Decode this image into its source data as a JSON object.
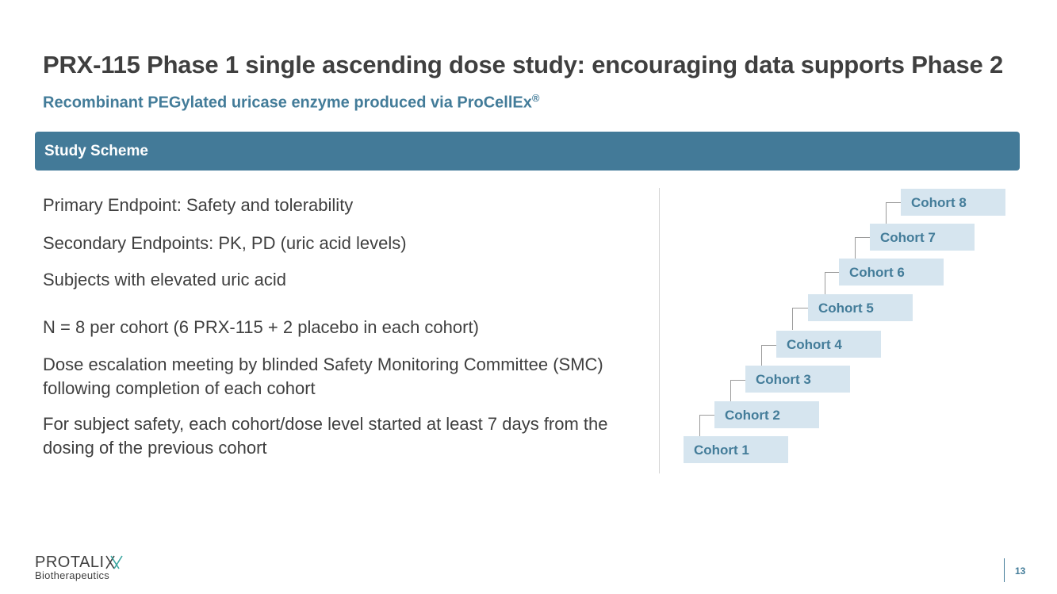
{
  "slide": {
    "title": "PRX-115 Phase 1 single ascending dose study: encouraging data supports Phase 2",
    "subtitle_text": "Recombinant PEGylated uricase enzyme produced via ProCellEx",
    "subtitle_mark": "®",
    "banner_label": "Study Scheme",
    "points": [
      "Primary Endpoint: Safety and tolerability",
      "Secondary Endpoints: PK, PD (uric acid levels)",
      "Subjects with elevated uric acid",
      "N = 8 per cohort (6 PRX-115 + 2 placebo in each cohort)",
      "Dose escalation meeting by blinded Safety Monitoring Committee (SMC) following completion of each cohort",
      "For subject safety, each cohort/dose level started at least 7 days from the dosing of the previous cohort"
    ],
    "cohorts": [
      "Cohort 1",
      "Cohort 2",
      "Cohort 3",
      "Cohort 4",
      "Cohort 5",
      "Cohort 6",
      "Cohort 7",
      "Cohort 8"
    ]
  },
  "footer": {
    "logo_main": "PROTALI",
    "logo_sub": "Biotherapeutics",
    "page_number": "13"
  },
  "colors": {
    "accent": "#437a98",
    "cohort_fill": "#d6e5ef",
    "text": "#3f3f3f"
  }
}
